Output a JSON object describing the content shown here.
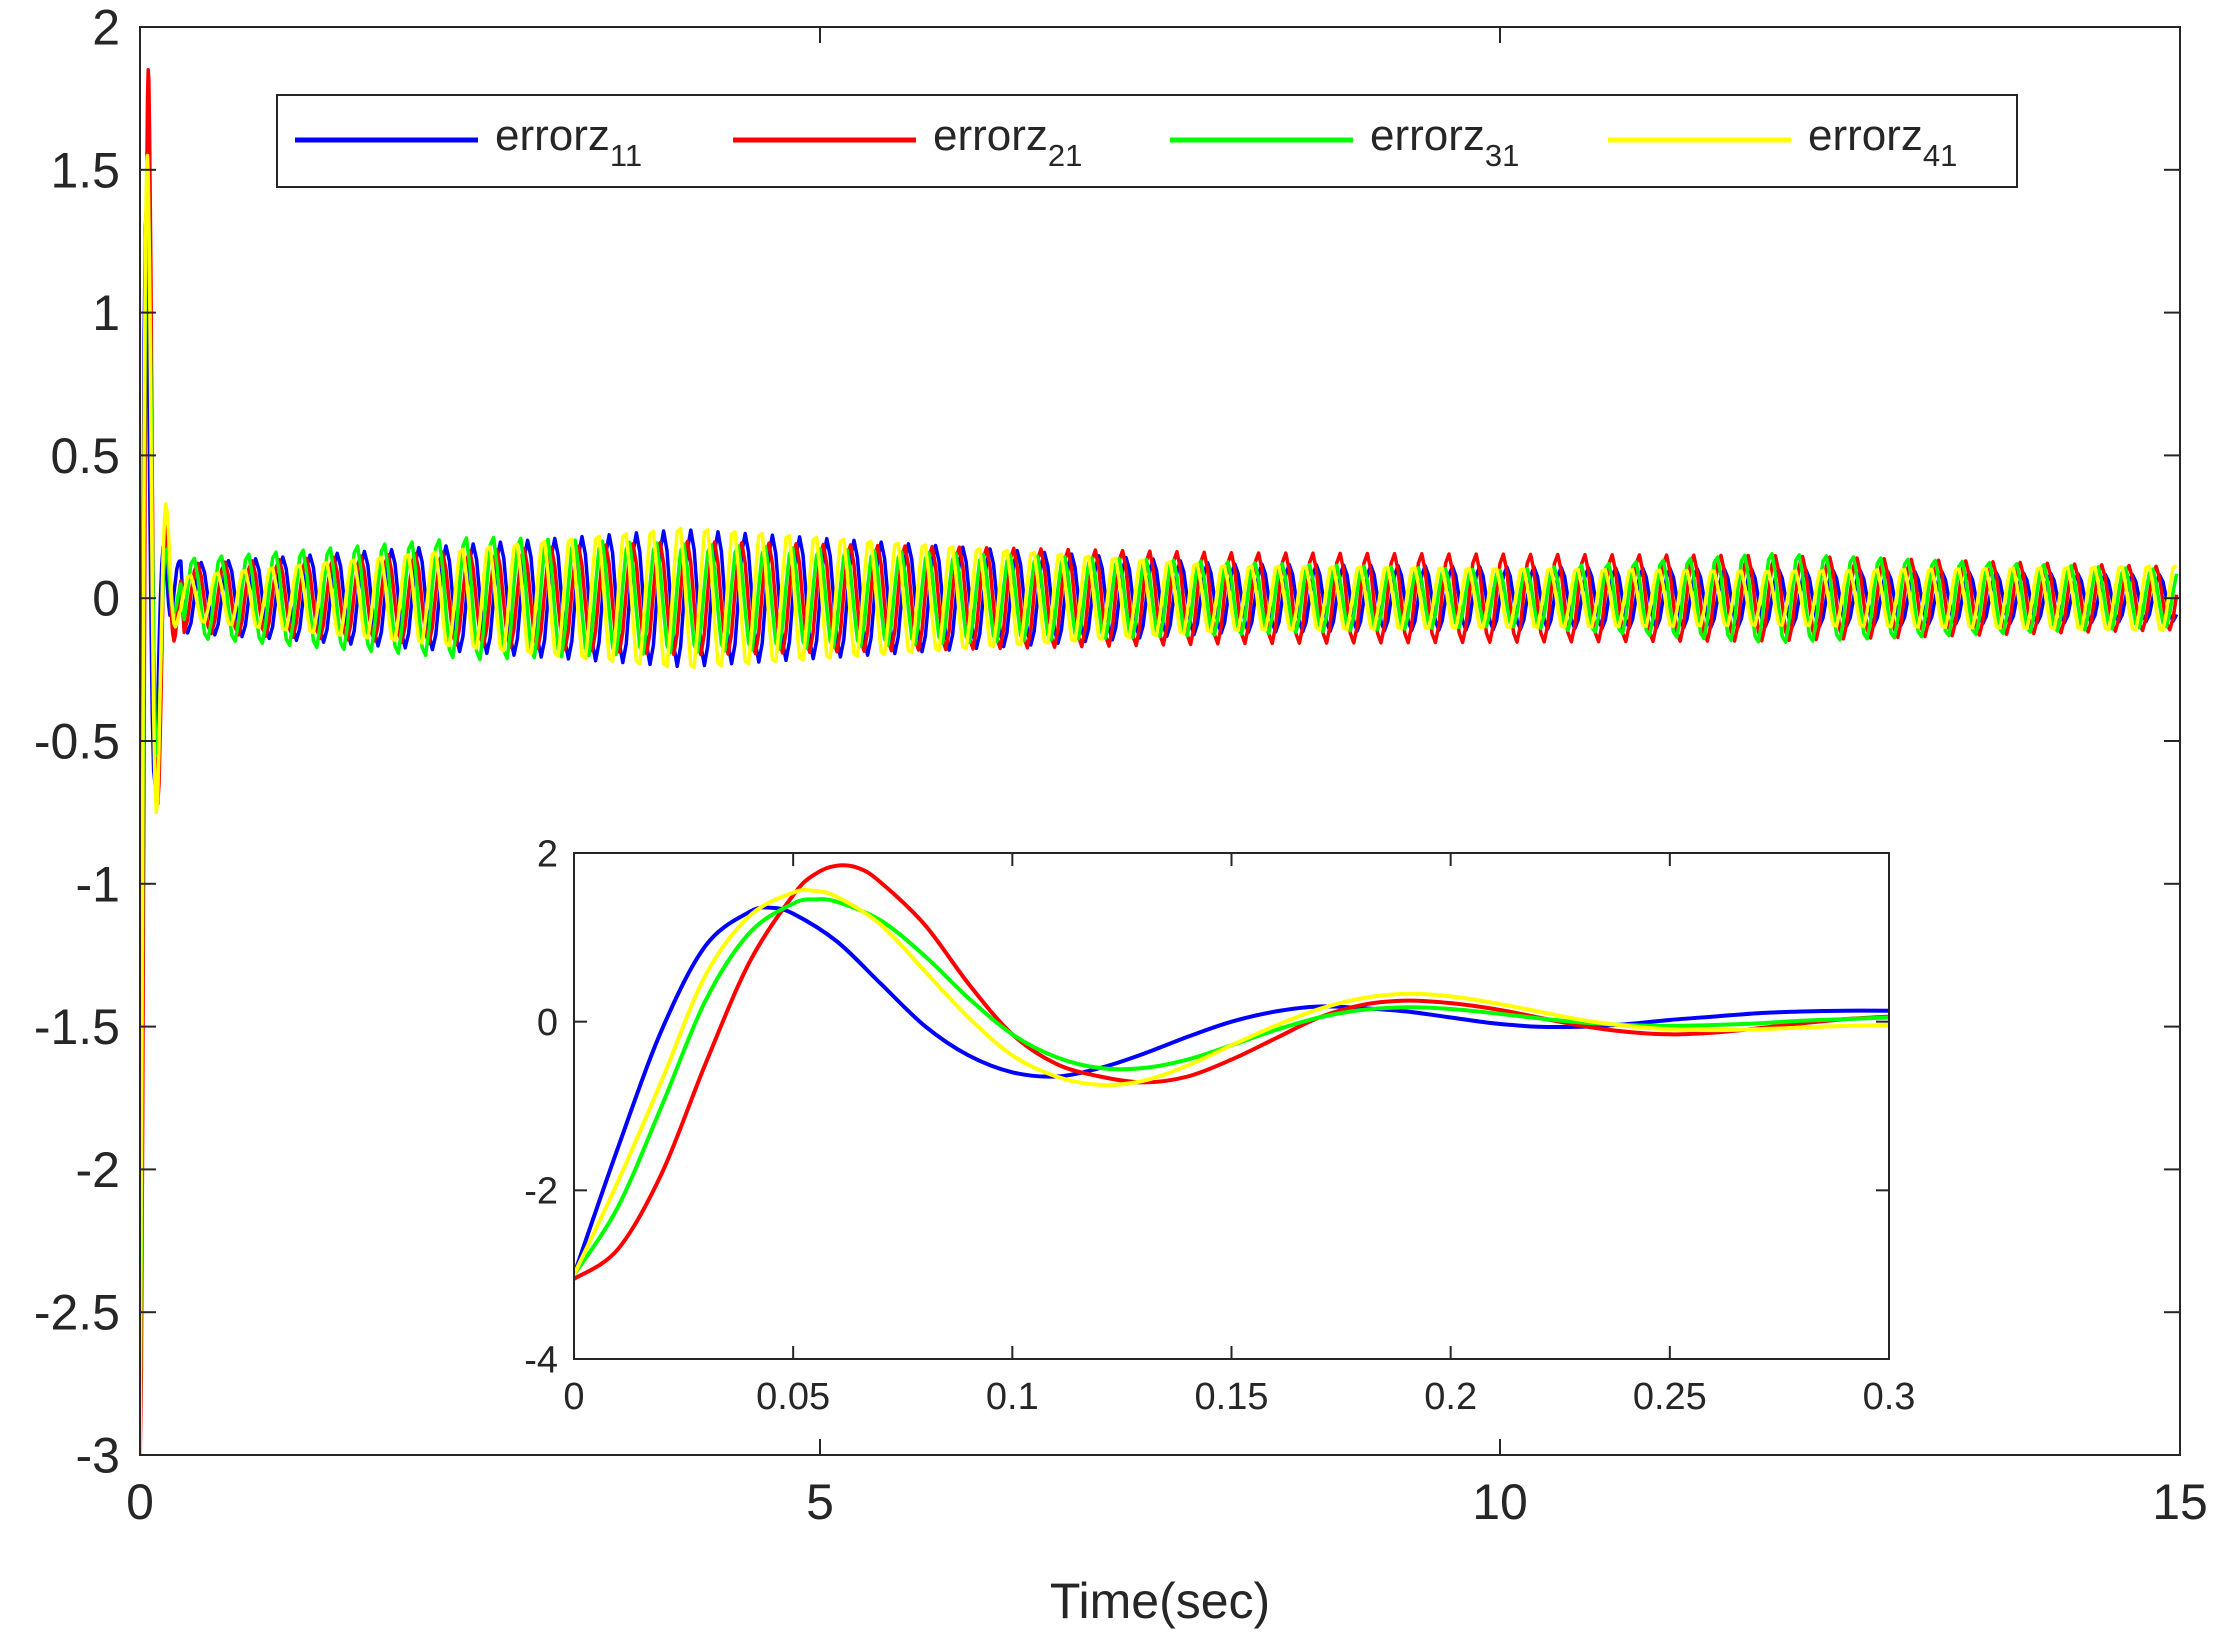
{
  "colors": {
    "axis": "#262626",
    "background": "#ffffff"
  },
  "legend": {
    "placement": "top",
    "entries": [
      {
        "base": "errorz",
        "sub": "11",
        "color": "#0000ff"
      },
      {
        "base": "errorz",
        "sub": "21",
        "color": "#ff0000"
      },
      {
        "base": "errorz",
        "sub": "31",
        "color": "#00ff00"
      },
      {
        "base": "errorz",
        "sub": "41",
        "color": "#ffff00"
      }
    ]
  },
  "chart_data": [
    {
      "id": "main",
      "type": "line",
      "title": "",
      "xlabel": "Time(sec)",
      "ylabel": "",
      "xlim": [
        0,
        15
      ],
      "ylim": [
        -3,
        2
      ],
      "xticks": [
        0,
        5,
        10,
        15
      ],
      "xtick_labels": [
        "0",
        "5",
        "10",
        "15"
      ],
      "yticks": [
        -3,
        -2.5,
        -2,
        -1.5,
        -1,
        -0.5,
        0,
        0.5,
        1,
        1.5,
        2
      ],
      "ytick_labels": [
        "-3",
        "-2.5",
        "-2",
        "-1.5",
        "-1",
        "-0.5",
        "0",
        "0.5",
        "1",
        "1.5",
        "2"
      ],
      "grid": false,
      "series": [
        {
          "name": "errorz11",
          "color": "#0000ff",
          "initial": -3,
          "peak": 1.35,
          "oscillation_period": 0.2,
          "amplitude_envelope": [
            [
              0.3,
              0.12
            ],
            [
              4,
              0.24
            ],
            [
              8,
              0.12
            ],
            [
              12,
              0.1
            ],
            [
              15,
              0.08
            ]
          ]
        },
        {
          "name": "errorz21",
          "color": "#ff0000",
          "initial": -3,
          "peak": 1.85,
          "oscillation_period": 0.2,
          "amplitude_envelope": [
            [
              0.3,
              0.12
            ],
            [
              4,
              0.2
            ],
            [
              8,
              0.16
            ],
            [
              12,
              0.15
            ],
            [
              15,
              0.11
            ]
          ]
        },
        {
          "name": "errorz31",
          "color": "#00ff00",
          "initial": -3,
          "peak": 1.45,
          "oscillation_period": 0.2,
          "amplitude_envelope": [
            [
              0.3,
              0.14
            ],
            [
              2.5,
              0.22
            ],
            [
              6,
              0.16
            ],
            [
              10,
              0.1
            ],
            [
              12,
              0.16
            ],
            [
              15,
              0.1
            ]
          ]
        },
        {
          "name": "errorz41",
          "color": "#ffff00",
          "initial": -3,
          "peak": 1.55,
          "oscillation_period": 0.2,
          "amplitude_envelope": [
            [
              0.3,
              0.08
            ],
            [
              4,
              0.26
            ],
            [
              8,
              0.12
            ],
            [
              12,
              0.1
            ],
            [
              15,
              0.12
            ]
          ]
        }
      ]
    },
    {
      "id": "inset",
      "type": "line",
      "title": "",
      "xlabel": "",
      "ylabel": "",
      "xlim": [
        0,
        0.3
      ],
      "ylim": [
        -4,
        2
      ],
      "xticks": [
        0,
        0.05,
        0.1,
        0.15,
        0.2,
        0.25,
        0.3
      ],
      "xtick_labels": [
        "0",
        "0.05",
        "0.1",
        "0.15",
        "0.2",
        "0.25",
        "0.3"
      ],
      "yticks": [
        -4,
        -2,
        0,
        2
      ],
      "ytick_labels": [
        "-4",
        "-2",
        "0",
        "2"
      ],
      "grid": false,
      "series": [
        {
          "name": "errorz11",
          "color": "#0000ff",
          "x": [
            0,
            0.01,
            0.02,
            0.03,
            0.04,
            0.045,
            0.05,
            0.06,
            0.07,
            0.08,
            0.09,
            0.1,
            0.11,
            0.12,
            0.13,
            0.14,
            0.15,
            0.16,
            0.17,
            0.18,
            0.19,
            0.2,
            0.21,
            0.22,
            0.23,
            0.24,
            0.25,
            0.26,
            0.27,
            0.28,
            0.29,
            0.3
          ],
          "y": [
            -3.0,
            -1.5,
            -0.1,
            0.9,
            1.3,
            1.35,
            1.28,
            0.95,
            0.45,
            -0.05,
            -0.4,
            -0.6,
            -0.65,
            -0.55,
            -0.38,
            -0.18,
            0.0,
            0.12,
            0.18,
            0.16,
            0.12,
            0.05,
            -0.02,
            -0.06,
            -0.06,
            -0.03,
            0.02,
            0.06,
            0.1,
            0.12,
            0.13,
            0.13
          ]
        },
        {
          "name": "errorz21",
          "color": "#ff0000",
          "x": [
            0,
            0.01,
            0.02,
            0.03,
            0.04,
            0.05,
            0.055,
            0.06,
            0.065,
            0.07,
            0.08,
            0.09,
            0.1,
            0.11,
            0.12,
            0.13,
            0.14,
            0.15,
            0.16,
            0.17,
            0.18,
            0.19,
            0.2,
            0.21,
            0.22,
            0.23,
            0.24,
            0.25,
            0.26,
            0.27,
            0.28,
            0.29,
            0.3
          ],
          "y": [
            -3.05,
            -2.7,
            -1.8,
            -0.5,
            0.7,
            1.5,
            1.75,
            1.85,
            1.82,
            1.65,
            1.15,
            0.45,
            -0.15,
            -0.5,
            -0.65,
            -0.72,
            -0.65,
            -0.45,
            -0.2,
            0.05,
            0.2,
            0.25,
            0.22,
            0.15,
            0.05,
            -0.05,
            -0.12,
            -0.15,
            -0.13,
            -0.08,
            -0.02,
            0.03,
            0.06
          ]
        },
        {
          "name": "errorz31",
          "color": "#00ff00",
          "x": [
            0,
            0.01,
            0.02,
            0.03,
            0.04,
            0.05,
            0.055,
            0.06,
            0.07,
            0.08,
            0.09,
            0.1,
            0.11,
            0.12,
            0.13,
            0.14,
            0.15,
            0.16,
            0.17,
            0.18,
            0.19,
            0.2,
            0.21,
            0.22,
            0.23,
            0.24,
            0.25,
            0.26,
            0.27,
            0.28,
            0.29,
            0.3
          ],
          "y": [
            -3.0,
            -2.2,
            -1.0,
            0.25,
            1.05,
            1.4,
            1.45,
            1.42,
            1.2,
            0.78,
            0.28,
            -0.15,
            -0.42,
            -0.55,
            -0.55,
            -0.45,
            -0.28,
            -0.1,
            0.05,
            0.14,
            0.17,
            0.15,
            0.1,
            0.04,
            -0.01,
            -0.04,
            -0.05,
            -0.04,
            -0.02,
            0.01,
            0.03,
            0.05
          ]
        },
        {
          "name": "errorz41",
          "color": "#ffff00",
          "x": [
            0,
            0.01,
            0.02,
            0.03,
            0.04,
            0.05,
            0.055,
            0.06,
            0.07,
            0.08,
            0.09,
            0.1,
            0.11,
            0.12,
            0.13,
            0.14,
            0.15,
            0.16,
            0.17,
            0.18,
            0.19,
            0.2,
            0.21,
            0.22,
            0.23,
            0.24,
            0.25,
            0.26,
            0.27,
            0.28,
            0.29,
            0.3
          ],
          "y": [
            -3.0,
            -1.9,
            -0.7,
            0.55,
            1.25,
            1.53,
            1.55,
            1.48,
            1.15,
            0.6,
            0.05,
            -0.4,
            -0.65,
            -0.75,
            -0.7,
            -0.52,
            -0.28,
            -0.05,
            0.15,
            0.28,
            0.33,
            0.3,
            0.22,
            0.12,
            0.02,
            -0.05,
            -0.09,
            -0.1,
            -0.09,
            -0.07,
            -0.05,
            -0.04
          ]
        }
      ]
    }
  ]
}
